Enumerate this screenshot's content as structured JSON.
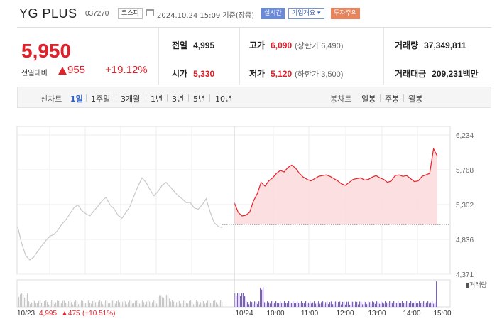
{
  "header": {
    "name": "YG PLUS",
    "code": "037270",
    "market": "코스피",
    "as_of": "2024.10.24 15:09 기준(장중)",
    "realtime_label": "실시간",
    "corp_label": "기업개요",
    "warning_label": "투자주의"
  },
  "quote": {
    "price": "5,950",
    "change_label": "전일대비",
    "change": "955",
    "change_pct": "+19.12%",
    "prev_close_label": "전일",
    "prev_close": "4,995",
    "open_label": "시가",
    "open": "5,330",
    "high_label": "고가",
    "high": "6,090",
    "upper_limit": "(상한가 6,490)",
    "low_label": "저가",
    "low": "5,120",
    "lower_limit": "(하한가 3,500)",
    "volume_label": "거래량",
    "volume": "37,349,811",
    "amount_label": "거래대금",
    "amount": "209,231",
    "amount_unit": "백만"
  },
  "periods": {
    "chart_label": "선차트",
    "items": [
      "1일",
      "1주일",
      "3개월",
      "1년",
      "3년",
      "5년",
      "10년"
    ],
    "active": "1일",
    "candle_label": "봉차트",
    "candle_items": [
      "일봉",
      "주봉",
      "월봉"
    ]
  },
  "chart_data": {
    "type": "line",
    "y_ticks": [
      "6,234",
      "5,768",
      "5,302",
      "4,836",
      "4,371"
    ],
    "ylim": [
      4371,
      6234
    ],
    "x_ticks": [
      "10/24",
      "10:00",
      "11:00",
      "12:00",
      "13:00",
      "14:00",
      "15:00"
    ],
    "prev_day_label": "10/23",
    "prev_day_close": "4,995",
    "prev_day_change": "▲475",
    "prev_day_pct": "(+10.51%)",
    "volume_legend": "거래량",
    "baseline": 4995,
    "prev_series": [
      5000,
      4780,
      4620,
      4560,
      4600,
      4680,
      4750,
      4820,
      4880,
      4900,
      4960,
      5040,
      5100,
      5180,
      5260,
      5300,
      5220,
      5180,
      5150,
      5220,
      5280,
      5350,
      5400,
      5300,
      5250,
      5160,
      5120,
      5200,
      5280,
      5420,
      5550,
      5660,
      5600,
      5500,
      5420,
      5480,
      5560,
      5600,
      5540,
      5480,
      5420,
      5380,
      5330,
      5330,
      5260,
      5240,
      5300,
      5380,
      5200,
      5060,
      5010,
      4995
    ],
    "today_series": [
      5330,
      5200,
      5150,
      5160,
      5200,
      5350,
      5450,
      5600,
      5550,
      5620,
      5660,
      5720,
      5760,
      5740,
      5800,
      5830,
      5790,
      5720,
      5670,
      5640,
      5620,
      5650,
      5680,
      5690,
      5700,
      5680,
      5650,
      5620,
      5580,
      5560,
      5600,
      5640,
      5650,
      5660,
      5630,
      5640,
      5670,
      5690,
      5660,
      5640,
      5600,
      5620,
      5690,
      5700,
      5680,
      5690,
      5650,
      5610,
      5620,
      5680,
      5700,
      5720,
      6050,
      5950
    ]
  }
}
